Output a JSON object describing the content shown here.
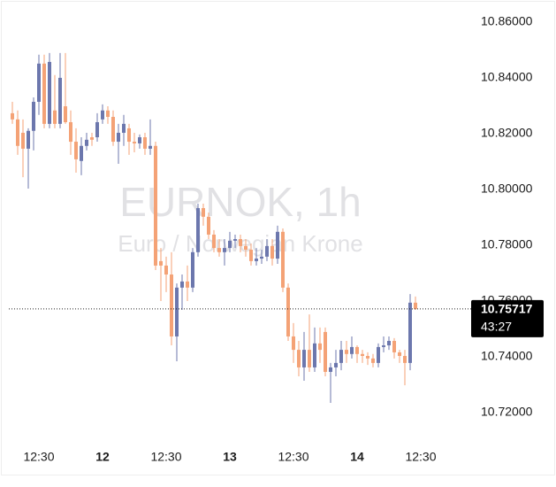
{
  "chart_data": {
    "type": "candlestick",
    "watermark_title": "EURNOK, 1h",
    "watermark_subtitle": "Euro / Norwegian Krone",
    "up_color": "#6c77ad",
    "down_color": "#f4a276",
    "grid": false,
    "categories": [
      null,
      null,
      null,
      null,
      null,
      "12:30",
      null,
      null,
      null,
      null,
      null,
      null,
      null,
      null,
      null,
      null,
      null,
      "12",
      null,
      null,
      null,
      null,
      null,
      null,
      null,
      null,
      null,
      null,
      null,
      "12:30",
      null,
      null,
      null,
      null,
      null,
      null,
      null,
      null,
      null,
      null,
      null,
      "13",
      null,
      null,
      null,
      null,
      null,
      null,
      null,
      null,
      null,
      null,
      null,
      "12:30",
      null,
      null,
      null,
      null,
      null,
      null,
      null,
      null,
      null,
      null,
      null,
      "14",
      null,
      null,
      null,
      null,
      null,
      null,
      null,
      null,
      null,
      null,
      null,
      "12:30"
    ],
    "open": [
      10.8273,
      10.8251,
      10.8203,
      10.8146,
      10.821,
      10.8314,
      10.8451,
      10.8235,
      10.8283,
      10.8235,
      10.8298,
      10.8241,
      10.8171,
      10.8102,
      10.8156,
      10.8187,
      10.8187,
      10.8251,
      10.8283,
      10.826,
      10.8171,
      10.8203,
      10.8219,
      10.8171,
      10.8165,
      10.8187,
      10.8146,
      10.8156,
      10.7743,
      10.7727,
      10.7695,
      10.7473,
      10.7648,
      10.767,
      10.7648,
      10.7775,
      10.7933,
      10.7902,
      10.7838,
      10.779,
      10.7775,
      10.779,
      10.7816,
      10.7822,
      10.7797,
      10.7784,
      10.7743,
      10.7752,
      10.7759,
      10.7797,
      10.7752,
      10.7848,
      10.7648,
      10.7473,
      10.7425,
      10.7362,
      10.7425,
      10.7362,
      10.7448,
      10.7489,
      10.7346,
      10.7362,
      10.7378,
      10.7425,
      10.741,
      10.7435,
      10.741,
      10.7403,
      10.7394,
      10.7378,
      10.7435,
      10.7441,
      10.7457,
      10.7416,
      10.7403,
      10.7378,
      10.7594,
      null
    ],
    "high": [
      10.8314,
      10.8283,
      10.8251,
      10.8219,
      10.833,
      10.8483,
      10.8483,
      10.8489,
      10.841,
      10.8489,
      10.8489,
      10.8283,
      10.8219,
      10.8187,
      10.8203,
      10.8203,
      10.8273,
      10.8305,
      10.8298,
      10.8283,
      10.8235,
      10.8267,
      10.8235,
      10.8203,
      10.8197,
      10.8203,
      10.8251,
      10.8171,
      10.779,
      10.7759,
      10.7775,
      10.7663,
      10.7695,
      10.7727,
      10.779,
      10.7949,
      10.7949,
      10.7917,
      10.7854,
      10.7822,
      10.7822,
      10.7848,
      10.7838,
      10.7838,
      10.7822,
      10.7806,
      10.779,
      10.7784,
      10.7822,
      10.7822,
      10.787,
      10.786,
      10.7663,
      10.7521,
      10.7457,
      10.7489,
      10.7552,
      10.7505,
      10.7505,
      10.7505,
      10.7378,
      10.7425,
      10.7457,
      10.7457,
      10.7473,
      10.7441,
      10.7425,
      10.7416,
      10.741,
      10.7448,
      10.7473,
      10.7473,
      10.7467,
      10.7425,
      10.7425,
      10.7625,
      10.7616,
      null
    ],
    "low": [
      10.8235,
      10.8124,
      10.8044,
      10.8003,
      10.814,
      10.8267,
      10.8219,
      10.8219,
      10.8219,
      10.8219,
      10.8235,
      10.8124,
      10.806,
      10.8051,
      10.814,
      10.8156,
      10.8171,
      10.8235,
      10.8235,
      10.8156,
      10.8092,
      10.8156,
      10.8124,
      10.8133,
      10.8146,
      10.8124,
      10.8124,
      10.7711,
      10.76,
      10.7632,
      10.7441,
      10.7384,
      10.7568,
      10.76,
      10.7632,
      10.7759,
      10.787,
      10.7822,
      10.7775,
      10.7759,
      10.7727,
      10.7775,
      10.779,
      10.7775,
      10.7759,
      10.7727,
      10.7727,
      10.7733,
      10.7743,
      10.7727,
      10.7733,
      10.7632,
      10.7457,
      10.7378,
      10.733,
      10.7314,
      10.7346,
      10.7346,
      10.7378,
      10.733,
      10.7235,
      10.733,
      10.7352,
      10.7378,
      10.7394,
      10.7378,
      10.7378,
      10.7371,
      10.7362,
      10.7362,
      10.7416,
      10.7425,
      10.7394,
      10.7378,
      10.7298,
      10.7352,
      10.7568,
      null
    ],
    "close": [
      10.8251,
      10.8156,
      10.8146,
      10.821,
      10.8314,
      10.8451,
      10.8235,
      10.8457,
      10.8235,
      10.84,
      10.8241,
      10.8171,
      10.8108,
      10.8156,
      10.8178,
      10.8178,
      10.8241,
      10.8283,
      10.826,
      10.8171,
      10.8203,
      10.8235,
      10.8171,
      10.8165,
      10.8187,
      10.8146,
      10.8156,
      10.7727,
      10.7727,
      10.7695,
      10.7473,
      10.7648,
      10.767,
      10.7648,
      10.7775,
      10.7933,
      10.7902,
      10.7838,
      10.779,
      10.7775,
      10.779,
      10.7816,
      10.7822,
      10.7797,
      10.7784,
      10.7743,
      10.7752,
      10.7759,
      10.7797,
      10.7752,
      10.7848,
      10.7648,
      10.7473,
      10.7425,
      10.7362,
      10.7425,
      10.7362,
      10.7448,
      10.7425,
      10.7346,
      10.7362,
      10.7378,
      10.7425,
      10.741,
      10.7435,
      10.741,
      10.7403,
      10.7394,
      10.7378,
      10.7435,
      10.7441,
      10.7457,
      10.7416,
      10.7403,
      10.7378,
      10.7594,
      10.75717,
      null
    ],
    "last_price": 10.75717,
    "countdown": "43:27",
    "ylim": [
      10.7092,
      10.8679
    ],
    "yticks": [
      {
        "value": 10.72,
        "label": "10.72000"
      },
      {
        "value": 10.74,
        "label": "10.74000"
      },
      {
        "value": 10.76,
        "label": "10.76000"
      },
      {
        "value": 10.78,
        "label": "10.78000"
      },
      {
        "value": 10.8,
        "label": "10.80000"
      },
      {
        "value": 10.82,
        "label": "10.82000"
      },
      {
        "value": 10.84,
        "label": "10.84000"
      },
      {
        "value": 10.86,
        "label": "10.86000"
      }
    ]
  }
}
